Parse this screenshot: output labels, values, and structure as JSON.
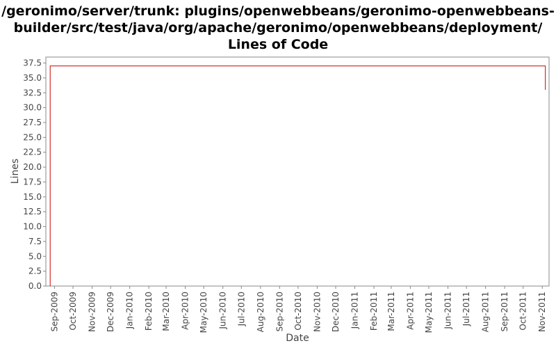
{
  "chart_data": {
    "type": "line",
    "title_lines": [
      "/geronimo/server/trunk: plugins/openwebbeans/geronimo-openwebbeans-",
      "builder/src/test/java/org/apache/geronimo/openwebbeans/deployment/",
      "Lines of Code"
    ],
    "xlabel": "Date",
    "ylabel": "Lines",
    "ylim": [
      0,
      38.5
    ],
    "y_ticks": [
      "0.0",
      "2.5",
      "5.0",
      "7.5",
      "10.0",
      "12.5",
      "15.0",
      "17.5",
      "20.0",
      "22.5",
      "25.0",
      "27.5",
      "30.0",
      "32.5",
      "35.0",
      "37.5"
    ],
    "x_ticks": [
      "Sep-2009",
      "Oct-2009",
      "Nov-2009",
      "Dec-2009",
      "Jan-2010",
      "Feb-2010",
      "Mar-2010",
      "Apr-2010",
      "May-2010",
      "Jun-2010",
      "Jul-2010",
      "Aug-2010",
      "Sep-2010",
      "Oct-2010",
      "Nov-2010",
      "Dec-2010",
      "Jan-2011",
      "Feb-2011",
      "Mar-2011",
      "Apr-2011",
      "May-2011",
      "Jun-2011",
      "Jul-2011",
      "Aug-2011",
      "Sep-2011",
      "Oct-2011",
      "Nov-2011"
    ],
    "xlim": [
      "2009-08-18",
      "2011-11-12"
    ],
    "grid": false,
    "series": [
      {
        "color": "#cc0000",
        "points": [
          {
            "x": "2009-08-25",
            "y": 0
          },
          {
            "x": "2009-08-25",
            "y": 37
          },
          {
            "x": "2011-11-06",
            "y": 37
          },
          {
            "x": "2011-11-06",
            "y": 33
          }
        ]
      }
    ]
  }
}
